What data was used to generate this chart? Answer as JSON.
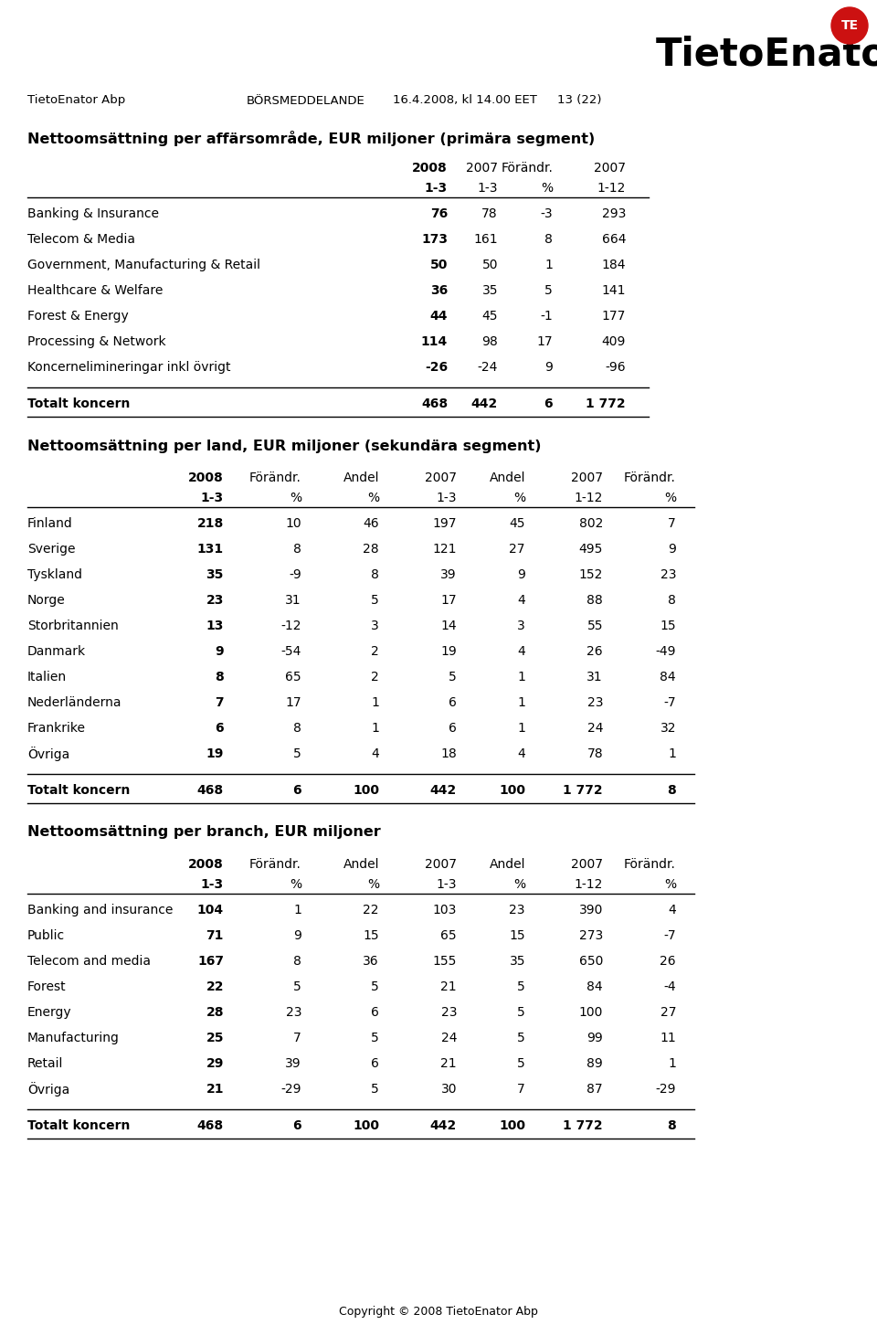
{
  "logo_text": "TietoEnator",
  "logo_circle": "TE",
  "header_left": "TietoEnator Abp",
  "header_center": "BÖRSMEDDELANDE",
  "header_right1": "16.4.2008, kl 14.00 EET",
  "header_right2": "13 (22)",
  "section1_title": "Nettoomsättning per affärsområde, EUR miljoner (primära segment)",
  "section1_col_headers_row1": [
    "2008",
    "2007",
    "Förändr.",
    "2007"
  ],
  "section1_col_headers_row2": [
    "1-3",
    "1-3",
    "%",
    "1-12"
  ],
  "section1_rows": [
    [
      "Banking & Insurance",
      "76",
      "78",
      "-3",
      "293"
    ],
    [
      "Telecom & Media",
      "173",
      "161",
      "8",
      "664"
    ],
    [
      "Government, Manufacturing & Retail",
      "50",
      "50",
      "1",
      "184"
    ],
    [
      "Healthcare & Welfare",
      "36",
      "35",
      "5",
      "141"
    ],
    [
      "Forest & Energy",
      "44",
      "45",
      "-1",
      "177"
    ],
    [
      "Processing & Network",
      "114",
      "98",
      "17",
      "409"
    ],
    [
      "Koncernelimineringar inkl övrigt",
      "-26",
      "-24",
      "9",
      "-96"
    ]
  ],
  "section1_total": [
    "Totalt koncern",
    "468",
    "442",
    "6",
    "1 772"
  ],
  "section2_title": "Nettoomsättning per land, EUR miljoner (sekundära segment)",
  "section2_col_headers_row1": [
    "2008",
    "Förändr.",
    "Andel",
    "2007",
    "Andel",
    "2007",
    "Förändr."
  ],
  "section2_col_headers_row2": [
    "1-3",
    "%",
    "%",
    "1-3",
    "%",
    "1-12",
    "%"
  ],
  "section2_rows": [
    [
      "Finland",
      "218",
      "10",
      "46",
      "197",
      "45",
      "802",
      "7"
    ],
    [
      "Sverige",
      "131",
      "8",
      "28",
      "121",
      "27",
      "495",
      "9"
    ],
    [
      "Tyskland",
      "35",
      "-9",
      "8",
      "39",
      "9",
      "152",
      "23"
    ],
    [
      "Norge",
      "23",
      "31",
      "5",
      "17",
      "4",
      "88",
      "8"
    ],
    [
      "Storbritannien",
      "13",
      "-12",
      "3",
      "14",
      "3",
      "55",
      "15"
    ],
    [
      "Danmark",
      "9",
      "-54",
      "2",
      "19",
      "4",
      "26",
      "-49"
    ],
    [
      "Italien",
      "8",
      "65",
      "2",
      "5",
      "1",
      "31",
      "84"
    ],
    [
      "Nederländerna",
      "7",
      "17",
      "1",
      "6",
      "1",
      "23",
      "-7"
    ],
    [
      "Frankrike",
      "6",
      "8",
      "1",
      "6",
      "1",
      "24",
      "32"
    ],
    [
      "Övriga",
      "19",
      "5",
      "4",
      "18",
      "4",
      "78",
      "1"
    ]
  ],
  "section2_total": [
    "Totalt koncern",
    "468",
    "6",
    "100",
    "442",
    "100",
    "1 772",
    "8"
  ],
  "section3_title": "Nettoomsättning per branch, EUR miljoner",
  "section3_col_headers_row1": [
    "2008",
    "Förändr.",
    "Andel",
    "2007",
    "Andel",
    "2007",
    "Förändr."
  ],
  "section3_col_headers_row2": [
    "1-3",
    "%",
    "%",
    "1-3",
    "%",
    "1-12",
    "%"
  ],
  "section3_rows": [
    [
      "Banking and insurance",
      "104",
      "1",
      "22",
      "103",
      "23",
      "390",
      "4"
    ],
    [
      "Public",
      "71",
      "9",
      "15",
      "65",
      "15",
      "273",
      "-7"
    ],
    [
      "Telecom and media",
      "167",
      "8",
      "36",
      "155",
      "35",
      "650",
      "26"
    ],
    [
      "Forest",
      "22",
      "5",
      "5",
      "21",
      "5",
      "84",
      "-4"
    ],
    [
      "Energy",
      "28",
      "23",
      "6",
      "23",
      "5",
      "100",
      "27"
    ],
    [
      "Manufacturing",
      "25",
      "7",
      "5",
      "24",
      "5",
      "99",
      "11"
    ],
    [
      "Retail",
      "29",
      "39",
      "6",
      "21",
      "5",
      "89",
      "1"
    ],
    [
      "Övriga",
      "21",
      "-29",
      "5",
      "30",
      "7",
      "87",
      "-29"
    ]
  ],
  "section3_total": [
    "Totalt koncern",
    "468",
    "6",
    "100",
    "442",
    "100",
    "1 772",
    "8"
  ],
  "footer": "Copyright © 2008 TietoEnator Abp",
  "bg_color": "#ffffff",
  "text_color": "#000000",
  "line_color": "#000000"
}
